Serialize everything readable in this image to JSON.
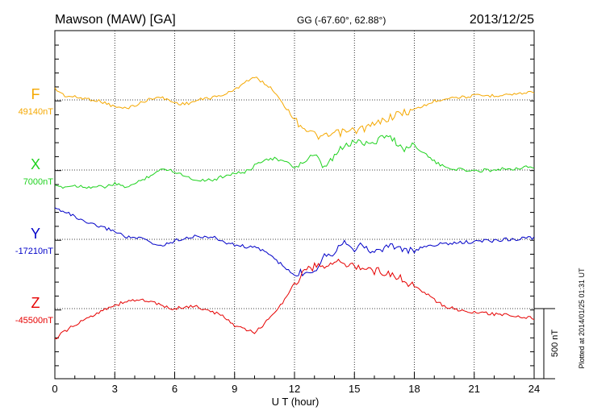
{
  "header": {
    "station": "Mawson (MAW)  [GA]",
    "coords": "GG (-67.60°,  62.88°)",
    "date": "2013/12/25"
  },
  "footer": {
    "plotted": "Plotted at 2014/01/25 01:31  UT"
  },
  "chart_data": {
    "type": "line",
    "xlabel": "U T (hour)",
    "xlim": [
      0,
      24
    ],
    "xticks": [
      "0",
      "3",
      "6",
      "9",
      "12",
      "15",
      "18",
      "21",
      "24"
    ],
    "scale_bar_label": "500 nT",
    "series": [
      {
        "name": "F",
        "baseline_label": "49140nT",
        "color": "#f5a800",
        "x": [
          0,
          0.5,
          1,
          1.5,
          2,
          2.5,
          3,
          3.5,
          4,
          4.5,
          5,
          5.5,
          6,
          6.5,
          7,
          7.5,
          8,
          8.5,
          9,
          9.5,
          10,
          10.5,
          11,
          11.5,
          12,
          12.5,
          13,
          13.5,
          14,
          14.5,
          15,
          15.5,
          16,
          16.5,
          17,
          17.5,
          18,
          18.5,
          19,
          19.5,
          20,
          20.5,
          21,
          21.5,
          22,
          22.5,
          23,
          23.5,
          24
        ],
        "values": [
          80,
          30,
          20,
          10,
          0,
          -20,
          -50,
          -60,
          -40,
          -10,
          20,
          10,
          -20,
          -30,
          -10,
          10,
          20,
          40,
          70,
          130,
          160,
          120,
          60,
          -40,
          -140,
          -200,
          -250,
          -270,
          -240,
          -230,
          -220,
          -200,
          -180,
          -140,
          -110,
          -90,
          -70,
          -40,
          -10,
          10,
          20,
          20,
          30,
          30,
          30,
          40,
          40,
          50,
          60
        ]
      },
      {
        "name": "X",
        "baseline_label": "7000nT",
        "color": "#1ed21e",
        "x": [
          0,
          0.5,
          1,
          1.5,
          2,
          2.5,
          3,
          3.5,
          4,
          4.5,
          5,
          5.5,
          6,
          6.5,
          7,
          7.5,
          8,
          8.5,
          9,
          9.5,
          10,
          10.5,
          11,
          11.5,
          12,
          12.5,
          13,
          13.5,
          14,
          14.5,
          15,
          15.5,
          16,
          16.5,
          17,
          17.5,
          18,
          18.5,
          19,
          19.5,
          20,
          20.5,
          21,
          21.5,
          22,
          22.5,
          23,
          23.5,
          24
        ],
        "values": [
          -120,
          -120,
          -110,
          -120,
          -120,
          -120,
          -100,
          -120,
          -100,
          -60,
          -20,
          10,
          -10,
          -40,
          -70,
          -70,
          -70,
          -40,
          -20,
          -20,
          30,
          80,
          80,
          60,
          20,
          60,
          100,
          10,
          100,
          170,
          200,
          200,
          200,
          250,
          210,
          150,
          180,
          120,
          60,
          20,
          10,
          0,
          -10,
          0,
          0,
          10,
          10,
          20,
          20
        ]
      },
      {
        "name": "Y",
        "baseline_label": "-17210nT",
        "color": "#0000c8",
        "x": [
          0,
          0.5,
          1,
          1.5,
          2,
          2.5,
          3,
          3.5,
          4,
          4.5,
          5,
          5.5,
          6,
          6.5,
          7,
          7.5,
          8,
          8.5,
          9,
          9.5,
          10,
          10.5,
          11,
          11.5,
          12,
          12.5,
          13,
          13.5,
          14,
          14.5,
          15,
          15.5,
          16,
          16.5,
          17,
          17.5,
          18,
          18.5,
          19,
          19.5,
          20,
          20.5,
          21,
          21.5,
          22,
          22.5,
          23,
          23.5,
          24
        ],
        "values": [
          220,
          200,
          160,
          120,
          100,
          80,
          60,
          20,
          10,
          0,
          -40,
          -40,
          -10,
          10,
          20,
          20,
          10,
          -20,
          -40,
          -50,
          -60,
          -80,
          -140,
          -200,
          -260,
          -230,
          -220,
          -110,
          -90,
          0,
          -60,
          -50,
          -100,
          -50,
          -50,
          -70,
          -90,
          -50,
          -40,
          -30,
          -30,
          -20,
          -20,
          -10,
          -10,
          0,
          0,
          10,
          10
        ]
      },
      {
        "name": "Z",
        "baseline_label": "-45500nT",
        "color": "#e60000",
        "x": [
          0,
          0.5,
          1,
          1.5,
          2,
          2.5,
          3,
          3.5,
          4,
          4.5,
          5,
          5.5,
          6,
          6.5,
          7,
          7.5,
          8,
          8.5,
          9,
          9.5,
          10,
          10.5,
          11,
          11.5,
          12,
          12.5,
          13,
          13.5,
          14,
          14.5,
          15,
          15.5,
          16,
          16.5,
          17,
          17.5,
          18,
          18.5,
          19,
          19.5,
          20,
          20.5,
          21,
          21.5,
          22,
          22.5,
          23,
          23.5,
          24
        ],
        "values": [
          -220,
          -160,
          -120,
          -80,
          -40,
          0,
          20,
          50,
          60,
          60,
          40,
          10,
          0,
          10,
          20,
          -10,
          -30,
          -60,
          -120,
          -150,
          -170,
          -110,
          -20,
          60,
          180,
          260,
          300,
          310,
          330,
          320,
          310,
          280,
          270,
          260,
          240,
          200,
          160,
          120,
          60,
          20,
          0,
          -20,
          -30,
          -30,
          -40,
          -40,
          -50,
          -60,
          -70
        ]
      }
    ]
  }
}
